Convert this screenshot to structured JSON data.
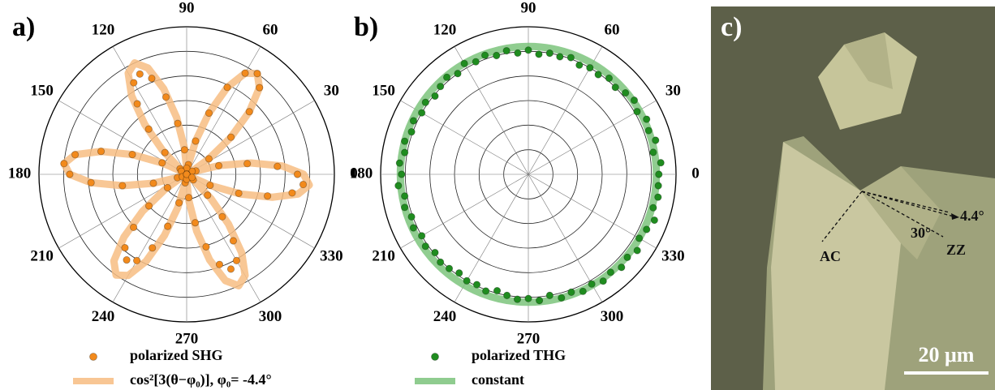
{
  "chart_data": [
    {
      "type": "polar",
      "label": "a)",
      "theta": [
        0,
        5,
        10,
        15,
        20,
        25,
        30,
        35,
        40,
        45,
        50,
        55,
        60,
        65,
        70,
        75,
        80,
        85,
        90,
        95,
        100,
        105,
        110,
        115,
        120,
        125,
        130,
        135,
        140,
        145,
        150,
        155,
        160,
        165,
        170,
        175,
        180,
        185,
        190,
        195,
        200,
        205,
        210,
        215,
        220,
        225,
        230,
        235,
        240,
        245,
        250,
        255,
        260,
        265,
        270,
        275,
        280,
        285,
        290,
        295,
        300,
        305,
        310,
        315,
        320,
        325,
        330,
        335,
        340,
        345,
        350,
        355
      ],
      "series": [
        {
          "name": "polarized SHG",
          "color": "#f28a1c",
          "style": "markers",
          "values": [
            0.9,
            0.74,
            0.5,
            0.27,
            0.08,
            0.0,
            0.05,
            0.22,
            0.47,
            0.72,
            0.92,
            1.0,
            0.95,
            0.78,
            0.53,
            0.28,
            0.08,
            0.0,
            0.05,
            0.2,
            0.42,
            0.65,
            0.83,
            0.9,
            0.86,
            0.7,
            0.48,
            0.25,
            0.07,
            0.0,
            0.05,
            0.22,
            0.47,
            0.72,
            0.92,
            1.0,
            0.95,
            0.78,
            0.53,
            0.28,
            0.08,
            0.0,
            0.04,
            0.19,
            0.4,
            0.61,
            0.78,
            0.85,
            0.81,
            0.66,
            0.45,
            0.24,
            0.07,
            0.0,
            0.04,
            0.19,
            0.4,
            0.61,
            0.78,
            0.85,
            0.81,
            0.66,
            0.45,
            0.24,
            0.07,
            0.0,
            0.05,
            0.21,
            0.45,
            0.68,
            0.87,
            0.95
          ]
        },
        {
          "name": "cos²[3(θ−φ₀)], φ₀= -4.4°",
          "color": "#f7bd82",
          "style": "line",
          "values": [
            0.95,
            0.78,
            0.53,
            0.28,
            0.08,
            0.0,
            0.05,
            0.22,
            0.47,
            0.72,
            0.92,
            1.0,
            0.95,
            0.78,
            0.53,
            0.28,
            0.08,
            0.0,
            0.05,
            0.22,
            0.47,
            0.72,
            0.92,
            1.0,
            0.95,
            0.78,
            0.53,
            0.28,
            0.08,
            0.0,
            0.05,
            0.22,
            0.47,
            0.72,
            0.92,
            1.0,
            0.95,
            0.78,
            0.53,
            0.28,
            0.08,
            0.0,
            0.05,
            0.22,
            0.47,
            0.72,
            0.92,
            1.0,
            0.95,
            0.78,
            0.53,
            0.28,
            0.08,
            0.0,
            0.05,
            0.22,
            0.47,
            0.72,
            0.92,
            1.0,
            0.95,
            0.78,
            0.53,
            0.28,
            0.08,
            0.0,
            0.05,
            0.22,
            0.47,
            0.72,
            0.92,
            1.0
          ]
        }
      ],
      "rlim": [
        0,
        1.2
      ],
      "rticks": [
        0.2,
        0.4,
        0.6,
        0.8,
        1.0,
        1.2
      ],
      "thetaticks": [
        0,
        30,
        60,
        90,
        120,
        150,
        180,
        210,
        240,
        270,
        300,
        330
      ]
    },
    {
      "type": "polar",
      "label": "b)",
      "theta": [
        0,
        5,
        10,
        15,
        20,
        25,
        30,
        35,
        40,
        45,
        50,
        55,
        60,
        65,
        70,
        75,
        80,
        85,
        90,
        95,
        100,
        105,
        110,
        115,
        120,
        125,
        130,
        135,
        140,
        145,
        150,
        155,
        160,
        165,
        170,
        175,
        180,
        185,
        190,
        195,
        200,
        205,
        210,
        215,
        220,
        225,
        230,
        235,
        240,
        245,
        250,
        255,
        260,
        265,
        270,
        275,
        280,
        285,
        290,
        295,
        300,
        305,
        310,
        315,
        320,
        325,
        330,
        335,
        340,
        345,
        350,
        355
      ],
      "series": [
        {
          "name": "polarized THG",
          "color": "#1f8c1f",
          "style": "markers",
          "values": [
            1.06,
            1.08,
            1.03,
            1.07,
            1.04,
            1.06,
            1.02,
            1.05,
            1.03,
            1.0,
            1.02,
            0.99,
            1.0,
            0.98,
            1.01,
            0.99,
            1.0,
            0.98,
            1.01,
            0.99,
            1.02,
            1.0,
            1.03,
            1.01,
            1.04,
            1.0,
            1.03,
            1.01,
            0.99,
            1.02,
            1.0,
            1.03,
            1.01,
            1.04,
            1.02,
            1.05,
            1.03,
            1.06,
            1.02,
            1.04,
            1.01,
            1.03,
            1.0,
            1.02,
            0.99,
            1.01,
            1.0,
            0.98,
            1.0,
            0.99,
            1.01,
            0.98,
            1.0,
            1.02,
            1.01,
            1.03,
            1.0,
            1.04,
            1.02,
            1.05,
            1.03,
            1.06,
            1.04,
            1.07,
            1.05,
            1.08,
            1.04,
            1.06,
            1.09,
            1.05,
            1.07,
            1.06
          ]
        },
        {
          "name": "constant",
          "color": "#7cc47c",
          "style": "constant",
          "value": 1.04
        }
      ],
      "rlim": [
        0,
        1.2
      ],
      "rticks": [
        0.2,
        0.4,
        0.6,
        0.8,
        1.0,
        1.2
      ],
      "thetaticks": [
        0,
        30,
        60,
        90,
        120,
        150,
        180,
        210,
        240,
        270,
        300,
        330
      ]
    }
  ],
  "image": {
    "label": "c)",
    "angle_small": "4.4°",
    "angle_large": "30°",
    "armchair": "AC",
    "zigzag": "ZZ",
    "scale_bar": "20 μm"
  }
}
